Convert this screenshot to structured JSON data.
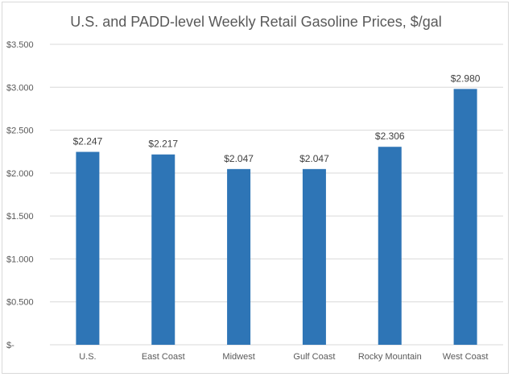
{
  "chart_data": {
    "type": "bar",
    "title": "U.S. and PADD-level Weekly Retail Gasoline Prices, $/gal",
    "xlabel": "",
    "ylabel": "",
    "categories": [
      "U.S.",
      "East Coast",
      "Midwest",
      "Gulf Coast",
      "Rocky Mountain",
      "West Coast"
    ],
    "values": [
      2.247,
      2.217,
      2.047,
      2.047,
      2.306,
      2.98
    ],
    "data_labels": [
      "$2.247",
      "$2.217",
      "$2.047",
      "$2.047",
      "$2.306",
      "$2.980"
    ],
    "ylim": [
      0,
      3.5
    ],
    "yticks": [
      0,
      0.5,
      1.0,
      1.5,
      2.0,
      2.5,
      3.0,
      3.5
    ],
    "ytick_labels": [
      "$-",
      "$0.500",
      "$1.000",
      "$1.500",
      "$2.000",
      "$2.500",
      "$3.000",
      "$3.500"
    ],
    "grid": true,
    "legend": "none",
    "bar_color": "#2e75b6",
    "grid_color": "#d9d9d9"
  }
}
